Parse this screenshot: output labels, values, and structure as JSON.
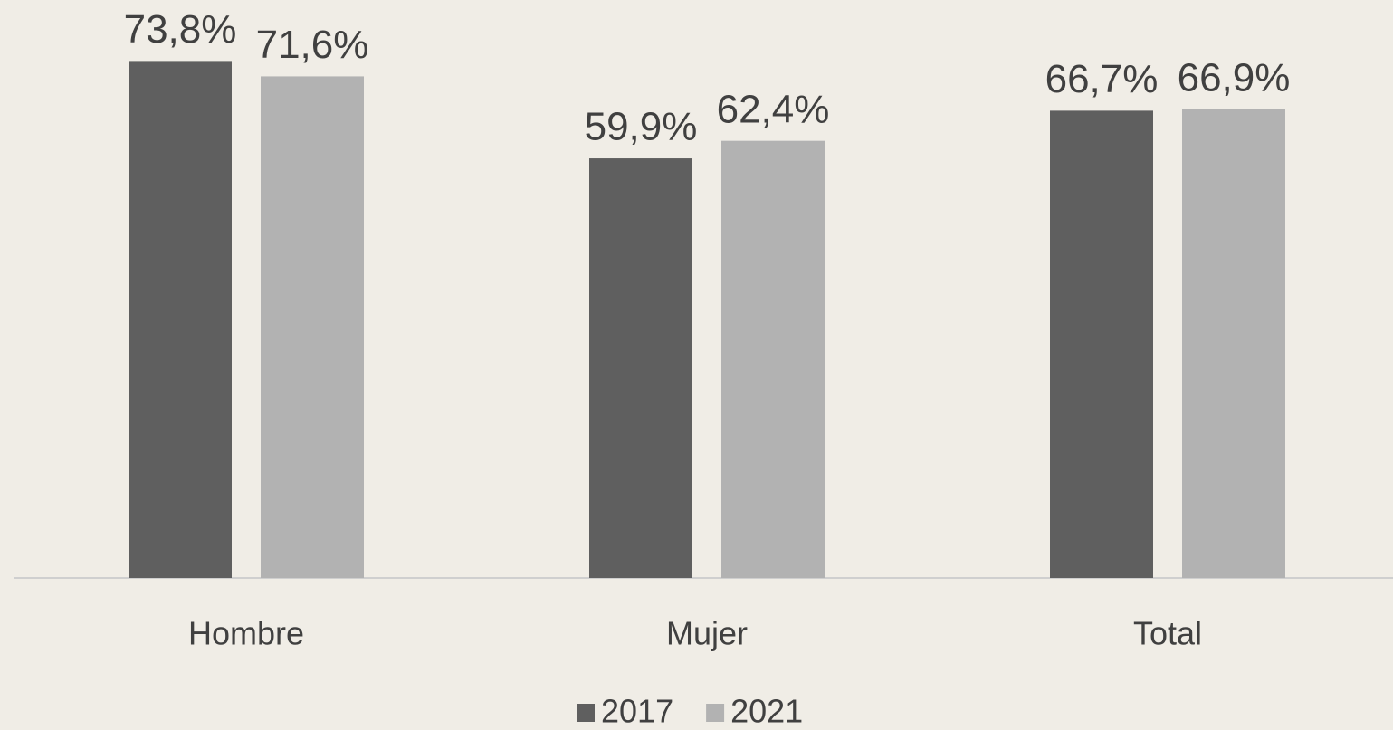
{
  "chart_data": {
    "type": "bar",
    "categories": [
      "Hombre",
      "Mujer",
      "Total"
    ],
    "series": [
      {
        "name": "2017",
        "color": "#5f5f5f",
        "values": [
          73.8,
          59.9,
          66.7
        ],
        "value_labels": [
          "73,8%",
          "59,9%",
          "66,7%"
        ]
      },
      {
        "name": "2021",
        "color": "#b2b2b2",
        "values": [
          71.6,
          62.4,
          66.9
        ],
        "value_labels": [
          "71,6%",
          "62,4%",
          "66,9%"
        ]
      }
    ],
    "ylim": [
      0,
      82.5
    ],
    "legend": "bottom"
  }
}
